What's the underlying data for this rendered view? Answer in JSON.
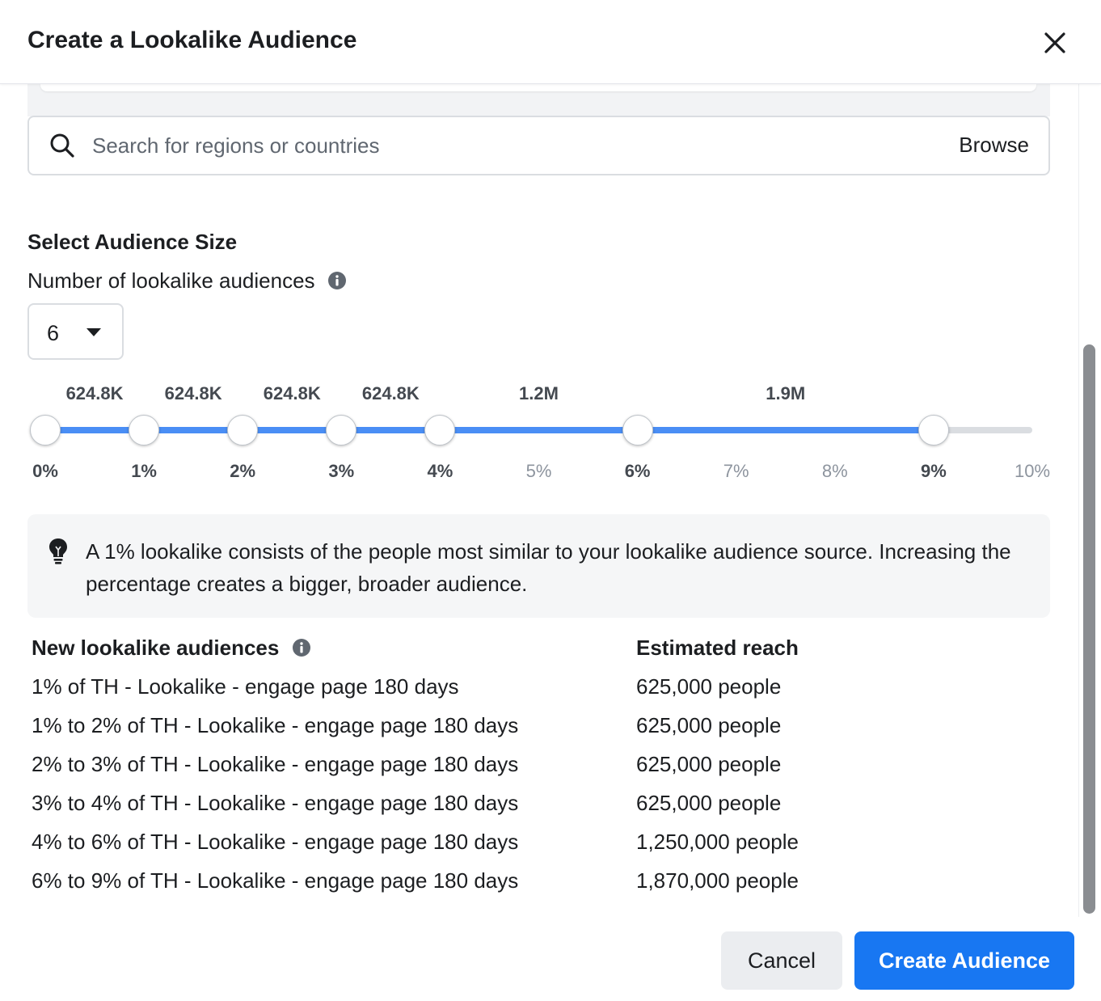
{
  "dialog": {
    "title": "Create a Lookalike Audience",
    "close_icon": "close-icon"
  },
  "location_search": {
    "placeholder": "Search for regions or countries",
    "value": "",
    "browse_label": "Browse",
    "icon": "search-icon"
  },
  "audience_size": {
    "section_title": "Select Audience Size",
    "count_label": "Number of lookalike audiences",
    "count_value": "6",
    "slider": {
      "accent": "#4a8ef5",
      "track_color": "#dadde1",
      "selected_points": [
        0,
        1,
        2,
        3,
        4,
        6,
        9
      ],
      "segment_sizes": [
        "624.8K",
        "624.8K",
        "624.8K",
        "624.8K",
        "1.2M",
        "1.9M"
      ],
      "tick_labels": [
        "0%",
        "1%",
        "2%",
        "3%",
        "4%",
        "5%",
        "6%",
        "7%",
        "8%",
        "9%",
        "10%"
      ]
    }
  },
  "tip": {
    "icon": "lightbulb-icon",
    "text": "A 1% lookalike consists of the people most similar to your lookalike audience source. Increasing the percentage creates a bigger, broader audience."
  },
  "audiences_table": {
    "header_name": "New lookalike audiences",
    "header_reach": "Estimated reach",
    "rows": [
      {
        "name": "1% of TH - Lookalike - engage page 180 days",
        "reach": "625,000 people"
      },
      {
        "name": "1% to 2% of TH - Lookalike - engage page 180 days",
        "reach": "625,000 people"
      },
      {
        "name": "2% to 3% of TH - Lookalike - engage page 180 days",
        "reach": "625,000 people"
      },
      {
        "name": "3% to 4% of TH - Lookalike - engage page 180 days",
        "reach": "625,000 people"
      },
      {
        "name": "4% to 6% of TH - Lookalike - engage page 180 days",
        "reach": "1,250,000 people"
      },
      {
        "name": "6% to 9% of TH - Lookalike - engage page 180 days",
        "reach": "1,870,000 people"
      }
    ]
  },
  "footer": {
    "cancel_label": "Cancel",
    "create_label": "Create Audience",
    "primary_color": "#1877f2"
  }
}
